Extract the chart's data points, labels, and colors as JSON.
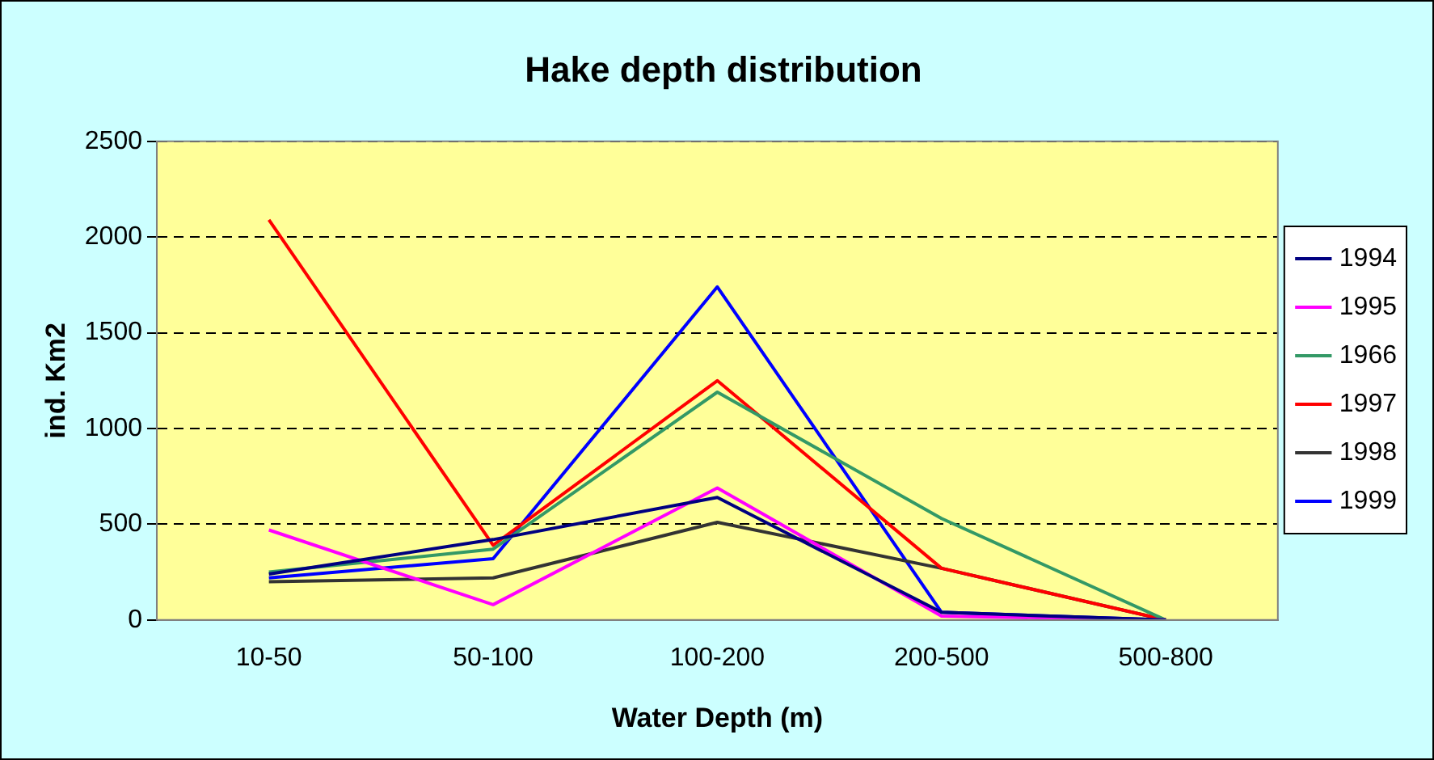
{
  "chart_data": {
    "type": "line",
    "title": "Hake depth distribution",
    "xlabel": "Water Depth (m)",
    "ylabel": "ind. Km2",
    "categories": [
      "10-50",
      "50-100",
      "100-200",
      "200-500",
      "500-800"
    ],
    "series": [
      {
        "name": "1994",
        "color": "#000080",
        "values": [
          240,
          420,
          640,
          40,
          0
        ]
      },
      {
        "name": "1995",
        "color": "#ff00ff",
        "values": [
          470,
          80,
          690,
          20,
          0
        ]
      },
      {
        "name": "1966",
        "color": "#339966",
        "values": [
          250,
          370,
          1190,
          530,
          0
        ]
      },
      {
        "name": "1997",
        "color": "#ff0000",
        "values": [
          2090,
          390,
          1250,
          270,
          0
        ]
      },
      {
        "name": "1998",
        "color": "#333333",
        "values": [
          200,
          220,
          510,
          270,
          0
        ]
      },
      {
        "name": "1999",
        "color": "#0000ff",
        "values": [
          220,
          320,
          1740,
          40,
          0
        ]
      }
    ],
    "ylim": [
      0,
      2500
    ],
    "yticks": [
      0,
      500,
      1000,
      1500,
      2000,
      2500
    ],
    "grid": "y",
    "legend": "right",
    "marker": "none",
    "line_style": "solid"
  }
}
